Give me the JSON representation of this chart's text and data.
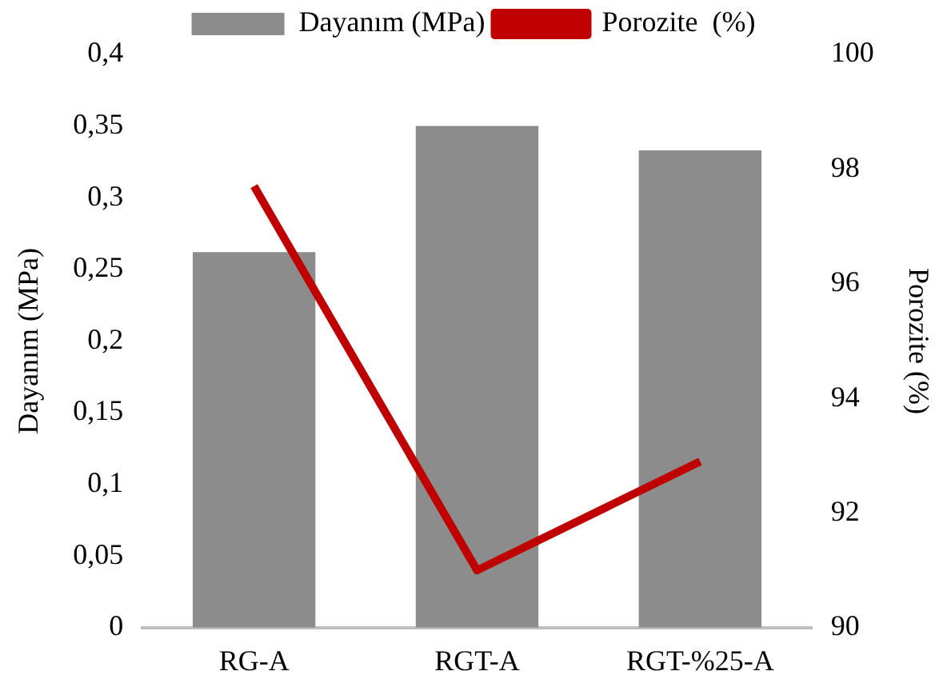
{
  "chart_data": {
    "type": "bar",
    "categories": [
      "RG-A",
      "RGT-A",
      "RGT-%25-A"
    ],
    "series": [
      {
        "name": "Dayanım (MPa)",
        "color": "#8c8c8c",
        "values": [
          0.262,
          0.35,
          0.333
        ]
      },
      {
        "name": "Porozite  (%)",
        "type": "line",
        "axis": "y2",
        "color": "#c00000",
        "values": [
          97.7,
          91.0,
          92.9
        ]
      }
    ],
    "ylabel": "Dayanım (MPa)",
    "y2label": "Porozite (%)",
    "ylim": [
      0,
      0.4
    ],
    "yticks": [
      0,
      {
        "value": 0.05,
        "label": "0,05"
      },
      {
        "value": 0.1,
        "label": "0,1"
      },
      {
        "value": 0.15,
        "label": "0,15"
      },
      {
        "value": 0.2,
        "label": "0,2"
      },
      {
        "value": 0.25,
        "label": "0,25"
      },
      {
        "value": 0.3,
        "label": "0,3"
      },
      {
        "value": 0.35,
        "label": "0,35"
      },
      {
        "value": 0.4,
        "label": "0,4"
      }
    ],
    "y2lim": [
      90,
      100
    ],
    "y2ticks": [
      90,
      92,
      94,
      96,
      98,
      100
    ],
    "grid": false,
    "legend": "top",
    "marker": "none"
  }
}
